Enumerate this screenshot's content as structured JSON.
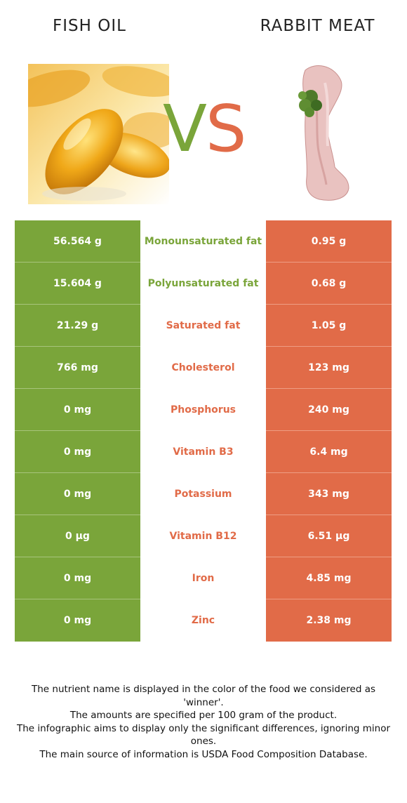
{
  "header": {
    "left_food": "FISH OIL",
    "right_food": "RABBIT MEAT",
    "vs_v": "V",
    "vs_s": "S"
  },
  "colors": {
    "winner_left": "#7aa53a",
    "winner_right": "#e16b48"
  },
  "rows": [
    {
      "nutrient": "Monounsaturated fat",
      "left": "56.564 g",
      "right": "0.95 g",
      "winner": "left"
    },
    {
      "nutrient": "Polyunsaturated fat",
      "left": "15.604 g",
      "right": "0.68 g",
      "winner": "left"
    },
    {
      "nutrient": "Saturated fat",
      "left": "21.29 g",
      "right": "1.05 g",
      "winner": "right"
    },
    {
      "nutrient": "Cholesterol",
      "left": "766 mg",
      "right": "123 mg",
      "winner": "right"
    },
    {
      "nutrient": "Phosphorus",
      "left": "0 mg",
      "right": "240 mg",
      "winner": "right"
    },
    {
      "nutrient": "Vitamin B3",
      "left": "0 mg",
      "right": "6.4 mg",
      "winner": "right"
    },
    {
      "nutrient": "Potassium",
      "left": "0 mg",
      "right": "343 mg",
      "winner": "right"
    },
    {
      "nutrient": "Vitamin B12",
      "left": "0 µg",
      "right": "6.51 µg",
      "winner": "right"
    },
    {
      "nutrient": "Iron",
      "left": "0 mg",
      "right": "4.85 mg",
      "winner": "right"
    },
    {
      "nutrient": "Zinc",
      "left": "0 mg",
      "right": "2.38 mg",
      "winner": "right"
    }
  ],
  "footer": {
    "line1": "The nutrient name is displayed in the color of the food we considered as 'winner'.",
    "line2": "The amounts are specified per 100 gram of the product.",
    "line3": "The infographic aims to display only the significant differences, ignoring minor ones.",
    "line4": "The main source of information is USDA Food Composition Database."
  }
}
